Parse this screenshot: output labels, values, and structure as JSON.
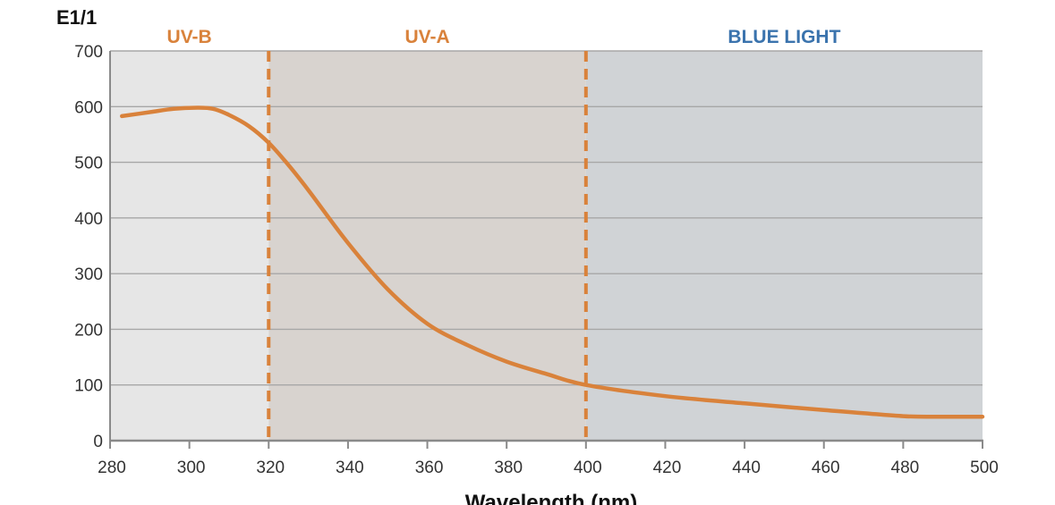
{
  "chart_data": {
    "type": "line",
    "ylabel": "E1/1",
    "xlabel": "Wavelength (nm)",
    "xlim": [
      280,
      500
    ],
    "ylim": [
      0,
      700
    ],
    "x_ticks": [
      280,
      300,
      320,
      340,
      360,
      380,
      400,
      420,
      440,
      460,
      480,
      500
    ],
    "y_ticks": [
      0,
      100,
      200,
      300,
      400,
      500,
      600,
      700
    ],
    "grid": "horizontal",
    "regions": [
      {
        "label": "UV-B",
        "from": 280,
        "to": 320,
        "fill": "#e6e6e6",
        "label_color": "#d9823b"
      },
      {
        "label": "UV-A",
        "from": 320,
        "to": 400,
        "fill": "#d8d3cf",
        "label_color": "#d9823b"
      },
      {
        "label": "BLUE LIGHT",
        "from": 400,
        "to": 500,
        "fill": "#d0d3d6",
        "label_color": "#3a73ad"
      }
    ],
    "dividers": [
      320,
      400
    ],
    "series": [
      {
        "color": "#d9823b",
        "x": [
          283,
          290,
          296,
          302,
          306,
          310,
          315,
          320,
          325,
          330,
          340,
          350,
          360,
          370,
          380,
          390,
          400,
          420,
          440,
          460,
          480,
          490,
          500
        ],
        "y": [
          583,
          590,
          596,
          598,
          596,
          585,
          565,
          535,
          495,
          450,
          355,
          272,
          210,
          172,
          142,
          120,
          100,
          80,
          67,
          55,
          44,
          43,
          43
        ]
      }
    ]
  }
}
